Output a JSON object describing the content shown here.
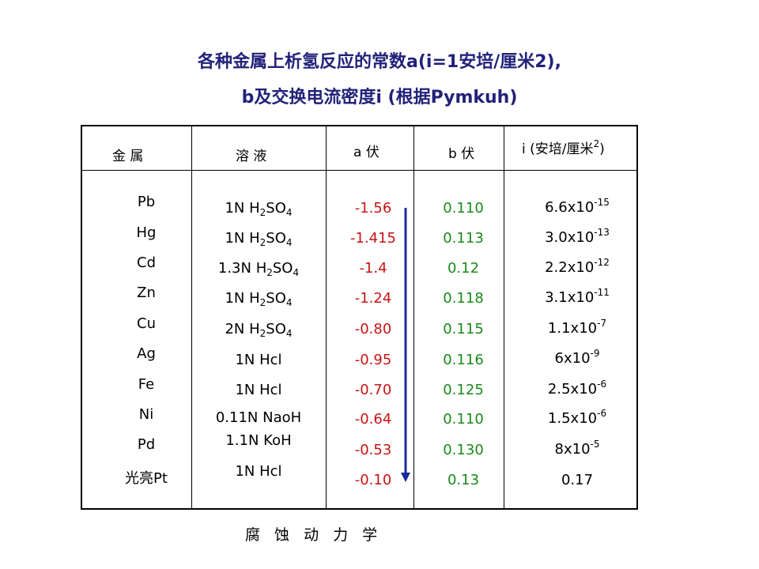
{
  "title": {
    "line1": "各种金属上析氢反应的常数a(i=1安培/厘米2),",
    "line2": "b及交换电流密度i (根据Pymkuh)"
  },
  "headers": {
    "metal": "金    属",
    "solution": "溶         液",
    "a": "a  伏",
    "b": "b  伏",
    "i_prefix": "i (安培/厘米",
    "i_exp": "2",
    "i_suffix": ")"
  },
  "rows": [
    {
      "metal": "Pb",
      "sol_pre": "1N H",
      "sol_s1": "2",
      "sol_mid": "SO",
      "sol_s2": "4",
      "a": "-1.56",
      "b": "0.110",
      "i_base": "6.6x10",
      "i_exp": "-15"
    },
    {
      "metal": "Hg",
      "sol_pre": "1N H",
      "sol_s1": "2",
      "sol_mid": "SO",
      "sol_s2": "4",
      "a": "-1.415",
      "b": "0.113",
      "i_base": "3.0x10",
      "i_exp": "-13"
    },
    {
      "metal": "Cd",
      "sol_pre": "1.3N H",
      "sol_s1": "2",
      "sol_mid": "SO",
      "sol_s2": "4",
      "a": "-1.4",
      "b": "0.12",
      "i_base": "2.2x10",
      "i_exp": "-12"
    },
    {
      "metal": "Zn",
      "sol_pre": "1N H",
      "sol_s1": "2",
      "sol_mid": "SO",
      "sol_s2": "4",
      "a": "-1.24",
      "b": "0.118",
      "i_base": "3.1x10",
      "i_exp": "-11"
    },
    {
      "metal": "Cu",
      "sol_pre": "2N H",
      "sol_s1": "2",
      "sol_mid": "SO",
      "sol_s2": "4",
      "a": "-0.80",
      "b": "0.115",
      "i_base": "1.1x10",
      "i_exp": "-7"
    },
    {
      "metal": "Ag",
      "sol_pre": "1N Hcl",
      "sol_s1": "",
      "sol_mid": "",
      "sol_s2": "",
      "a": "-0.95",
      "b": "0.116",
      "i_base": "6x10",
      "i_exp": "-9"
    },
    {
      "metal": "Fe",
      "sol_pre": "1N Hcl",
      "sol_s1": "",
      "sol_mid": "",
      "sol_s2": "",
      "a": "-0.70",
      "b": "0.125",
      "i_base": "2.5x10",
      "i_exp": "-6"
    },
    {
      "metal": "Ni",
      "sol_pre": "0.11N NaoH",
      "sol_s1": "",
      "sol_mid": "",
      "sol_s2": "",
      "a": "-0.64",
      "b": "0.110",
      "i_base": "1.5x10",
      "i_exp": "-6"
    },
    {
      "metal": "Pd",
      "sol_pre": "1.1N KoH",
      "sol_s1": "",
      "sol_mid": "",
      "sol_s2": "",
      "a": "-0.53",
      "b": "0.130",
      "i_base": "8x10",
      "i_exp": "-5"
    },
    {
      "metal": "光亮Pt",
      "sol_pre": "1N Hcl",
      "sol_s1": "",
      "sol_mid": "",
      "sol_s2": "",
      "a": "-0.10",
      "b": "0.13",
      "i_base": "0.17",
      "i_exp": ""
    }
  ],
  "footer": "腐 蚀 动 力 学",
  "colors": {
    "title": "#22227a",
    "a_values": "#c81414",
    "b_values": "#1a8a1a",
    "arrow": "#1b2a9c"
  }
}
